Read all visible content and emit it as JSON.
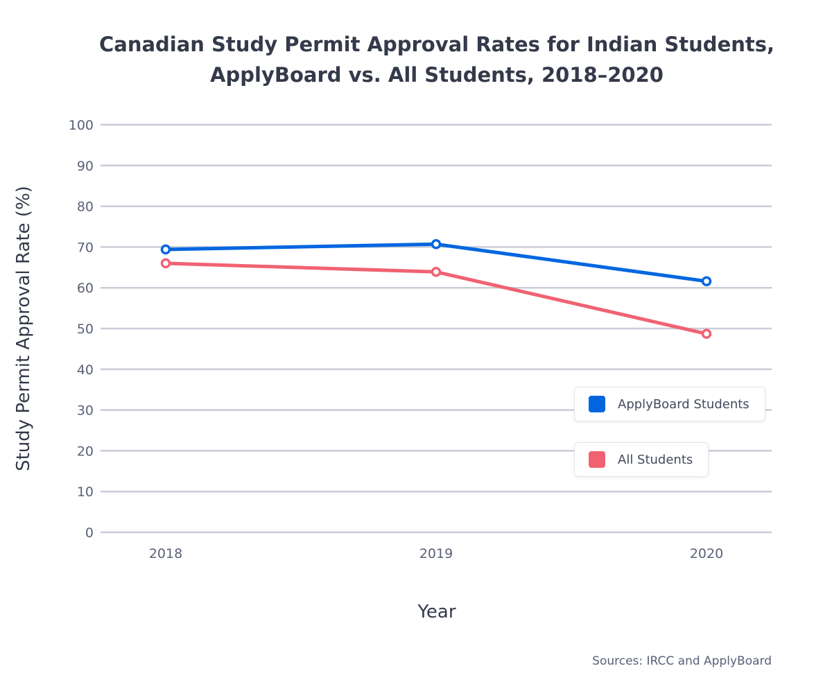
{
  "chart_data": {
    "type": "line",
    "title": "Canadian Study Permit Approval Rates for Indian Students, ApplyBoard vs. All Students, 2018–2020",
    "title_lines": [
      "Canadian Study Permit Approval Rates for Indian Students,",
      "ApplyBoard vs. All Students, 2018–2020"
    ],
    "xlabel": "Year",
    "ylabel": "Study Permit Approval Rate (%)",
    "x": [
      "2018",
      "2019",
      "2020"
    ],
    "ylim": [
      0,
      100
    ],
    "yticks": [
      0,
      10,
      20,
      30,
      40,
      50,
      60,
      70,
      80,
      90,
      100
    ],
    "grid": true,
    "legend_position": "right",
    "series": [
      {
        "name": "ApplyBoard Students",
        "color": "#0066e0",
        "values": [
          69.4,
          70.7,
          61.6
        ]
      },
      {
        "name": "All Students",
        "color": "#f06272",
        "values": [
          66.0,
          63.9,
          48.7
        ]
      }
    ],
    "source": "Sources: IRCC and ApplyBoard"
  }
}
